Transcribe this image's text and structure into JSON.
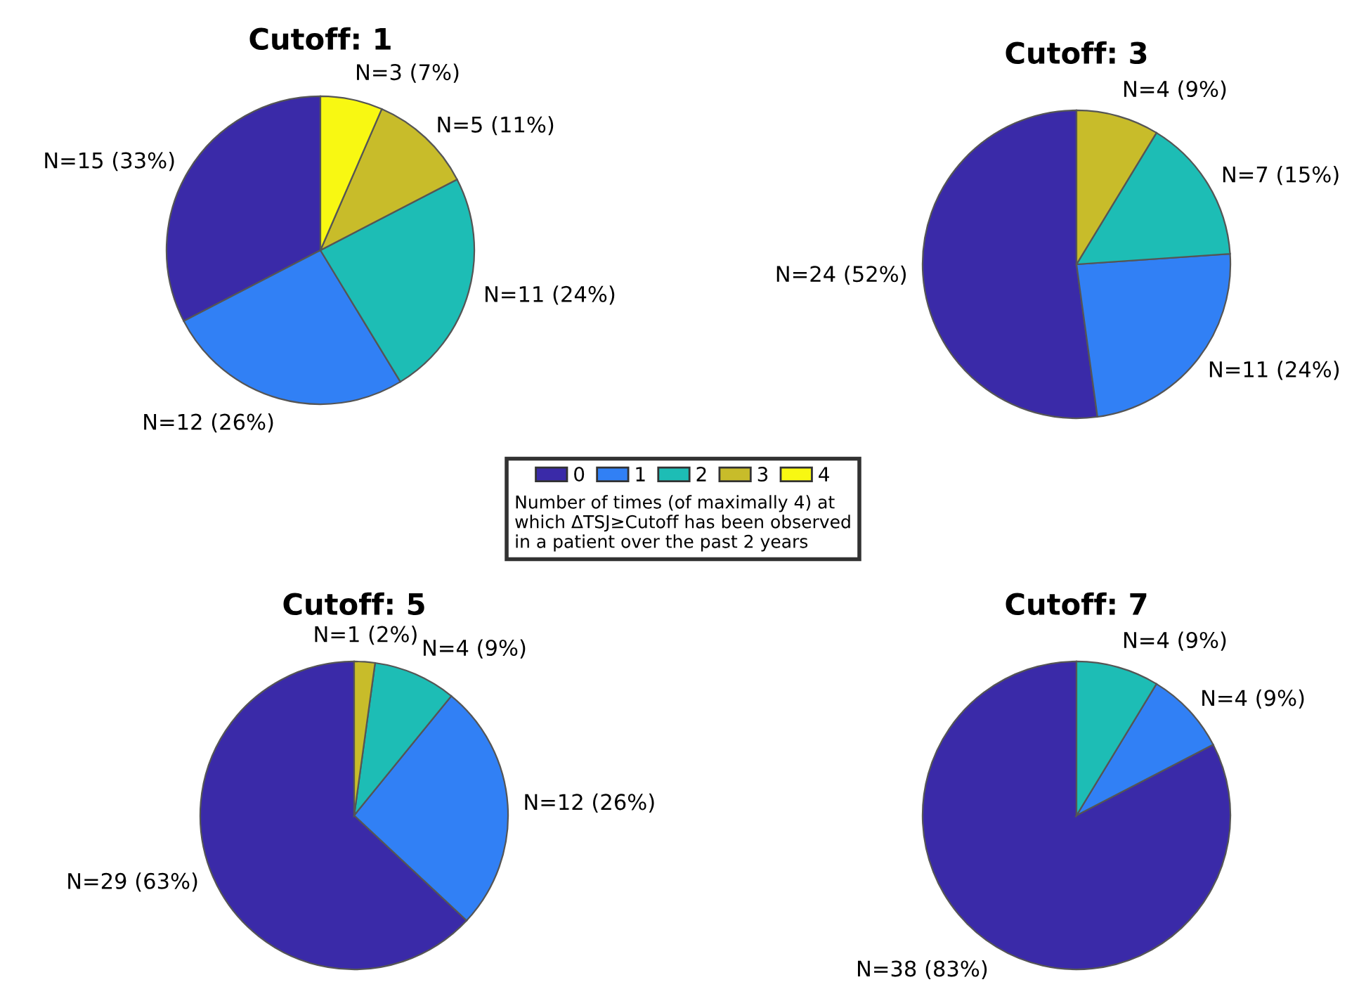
{
  "chart_data": [
    {
      "type": "pie",
      "title": "Cutoff: 1",
      "categories": [
        "0",
        "1",
        "2",
        "3",
        "4"
      ],
      "values": [
        15,
        12,
        11,
        5,
        3
      ],
      "colors": [
        "#3a2aa8",
        "#3180f5",
        "#1dbdb5",
        "#c8bc2a",
        "#f8f812"
      ],
      "value_labels": [
        "N=15 (33%)",
        "N=12 (26%)",
        "N=11 (24%)",
        "N=5 (11%)",
        "N=3 (7%)"
      ],
      "legend": "bottom right",
      "legend_title": "Number of times (of maximally 4) at\nwhich ΔTSJ≥Cutoff has been observed\nin a patient over the past 2 years"
    },
    {
      "type": "pie",
      "title": "Cutoff: 3",
      "categories": [
        null,
        null,
        null,
        null
      ],
      "values": [
        24,
        11,
        7,
        4
      ],
      "colors": [
        "#3a2aa8",
        "#3180f5",
        "#1dbdb5",
        "#c8bc2a"
      ],
      "value_labels": [
        "N=24 (52%)",
        "N=11 (24%)",
        "N=7 (15%)",
        "N=4 (9%)"
      ]
    },
    {
      "type": "pie",
      "title": "Cutoff: 5",
      "categories": [
        null,
        null,
        null,
        null
      ],
      "values": [
        29,
        12,
        4,
        1
      ],
      "colors": [
        "#3a2aa8",
        "#3180f5",
        "#1dbdb5",
        "#c8bc2a"
      ],
      "value_labels": [
        "N=29 (63%)",
        "N=12 (26%)",
        "N=4 (9%)",
        "N=1 (2%)"
      ]
    },
    {
      "type": "pie",
      "title": "Cutoff: 7",
      "categories": [
        null,
        null,
        null
      ],
      "values": [
        38,
        4,
        4
      ],
      "colors": [
        "#3a2aa8",
        "#3180f5",
        "#1dbdb5"
      ],
      "value_labels": [
        "N=38 (83%)",
        "N=4 (9%)",
        "N=4 (9%)"
      ]
    }
  ]
}
